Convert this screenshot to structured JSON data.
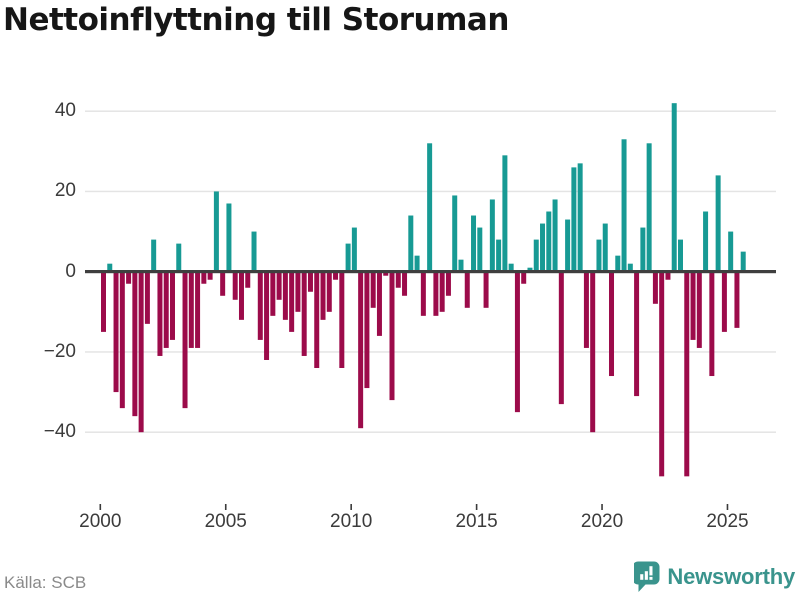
{
  "title": "Nettoinflyttning till Storuman",
  "source": "Källa: SCB",
  "branding": {
    "name": "Newsworthy",
    "icon": "bar-chart-speech-bubble-icon",
    "color": "#3a948d"
  },
  "colors": {
    "positive": "#179a94",
    "negative": "#9c0b4a",
    "zero_line": "#3f3f3f",
    "grid": "#e4e4e4",
    "tick_mark": "#3b3b3b",
    "axis_label": "#3b3b3b",
    "title_text": "#161616",
    "source_text": "#8a8a8a"
  },
  "chart_data": {
    "type": "bar",
    "title": "Nettoinflyttning till Storuman",
    "x_unit": "quarter",
    "start_quarter": "2000-Q1",
    "end_quarter": "2025-Q3",
    "xlabel": "",
    "ylabel": "",
    "ylim": [
      -55,
      46
    ],
    "grid": true,
    "legend": "none",
    "y_ticks": [
      40,
      20,
      0,
      -20,
      -40
    ],
    "y_tick_labels": [
      "40",
      "20",
      "0",
      "−20",
      "−40"
    ],
    "x_tick_years": [
      2000,
      2005,
      2010,
      2015,
      2020,
      2025
    ],
    "x_tick_labels": [
      "2000",
      "2005",
      "2010",
      "2015",
      "2020",
      "2025"
    ],
    "series": [
      {
        "name": "Nettoinflyttning",
        "values": [
          -15,
          2,
          -30,
          -34,
          -3,
          -36,
          -40,
          -13,
          8,
          -21,
          -19,
          -17,
          7,
          -34,
          -19,
          -19,
          -3,
          -2,
          20,
          -6,
          17,
          -7,
          -12,
          -4,
          10,
          -17,
          -22,
          -11,
          -7,
          -12,
          -15,
          -10,
          -21,
          -5,
          -24,
          -12,
          -10,
          -2,
          -24,
          7,
          11,
          -39,
          -29,
          -9,
          -16,
          -1,
          -32,
          -4,
          -6,
          14,
          4,
          -11,
          32,
          -11,
          -10,
          -6,
          19,
          3,
          -9,
          14,
          11,
          -9,
          18,
          8,
          29,
          2,
          -35,
          -3,
          1,
          8,
          12,
          15,
          18,
          -33,
          13,
          26,
          27,
          -19,
          -40,
          8,
          12,
          -26,
          4,
          33,
          2,
          -31,
          11,
          32,
          -8,
          -51,
          -2,
          42,
          8,
          -51,
          -17,
          -19,
          15,
          -26,
          24,
          -15,
          10,
          -14,
          5
        ]
      }
    ]
  }
}
